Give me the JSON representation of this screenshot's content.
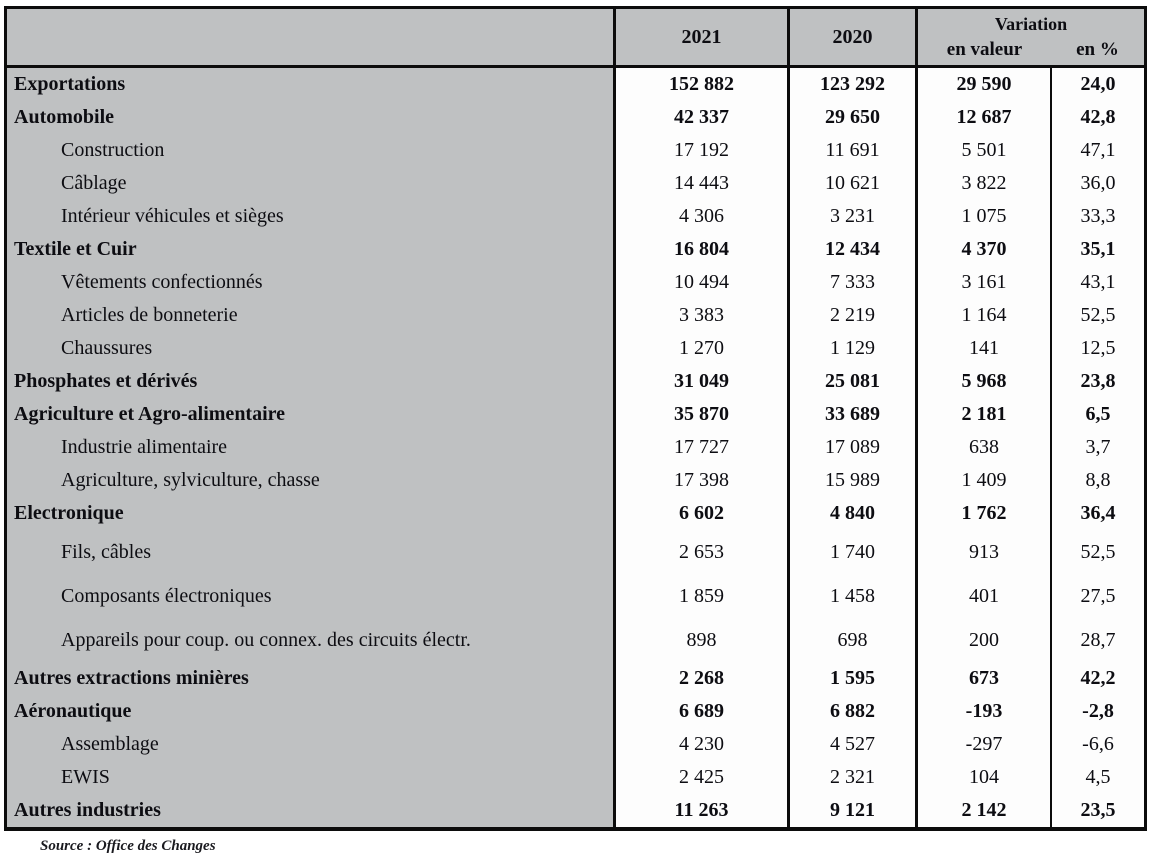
{
  "table": {
    "header": {
      "col_2021": "2021",
      "col_2020": "2020",
      "variation": "Variation",
      "en_valeur": "en valeur",
      "en_pct": "en %"
    },
    "rows": [
      {
        "label": "Exportations",
        "v2021": "152 882",
        "v2020": "123 292",
        "var_value": "29 590",
        "var_pct": "24,0",
        "bold": true,
        "indent": false,
        "tall": false
      },
      {
        "label": "Automobile",
        "v2021": "42 337",
        "v2020": "29 650",
        "var_value": "12 687",
        "var_pct": "42,8",
        "bold": true,
        "indent": false,
        "tall": false
      },
      {
        "label": "Construction",
        "v2021": "17 192",
        "v2020": "11 691",
        "var_value": "5 501",
        "var_pct": "47,1",
        "bold": false,
        "indent": true,
        "tall": false
      },
      {
        "label": "Câblage",
        "v2021": "14 443",
        "v2020": "10 621",
        "var_value": "3 822",
        "var_pct": "36,0",
        "bold": false,
        "indent": true,
        "tall": false
      },
      {
        "label": "Intérieur véhicules et sièges",
        "v2021": "4 306",
        "v2020": "3 231",
        "var_value": "1 075",
        "var_pct": "33,3",
        "bold": false,
        "indent": true,
        "tall": false
      },
      {
        "label": "Textile et Cuir",
        "v2021": "16 804",
        "v2020": "12 434",
        "var_value": "4 370",
        "var_pct": "35,1",
        "bold": true,
        "indent": false,
        "tall": false
      },
      {
        "label": "Vêtements confectionnés",
        "v2021": "10 494",
        "v2020": "7 333",
        "var_value": "3 161",
        "var_pct": "43,1",
        "bold": false,
        "indent": true,
        "tall": false
      },
      {
        "label": "Articles de bonneterie",
        "v2021": "3 383",
        "v2020": "2 219",
        "var_value": "1 164",
        "var_pct": "52,5",
        "bold": false,
        "indent": true,
        "tall": false
      },
      {
        "label": "Chaussures",
        "v2021": "1 270",
        "v2020": "1 129",
        "var_value": "141",
        "var_pct": "12,5",
        "bold": false,
        "indent": true,
        "tall": false
      },
      {
        "label": "Phosphates et dérivés",
        "v2021": "31 049",
        "v2020": "25 081",
        "var_value": "5 968",
        "var_pct": "23,8",
        "bold": true,
        "indent": false,
        "tall": false
      },
      {
        "label": "Agriculture et Agro-alimentaire",
        "v2021": "35 870",
        "v2020": "33 689",
        "var_value": "2 181",
        "var_pct": "6,5",
        "bold": true,
        "indent": false,
        "tall": false
      },
      {
        "label": "Industrie alimentaire",
        "v2021": "17 727",
        "v2020": "17 089",
        "var_value": "638",
        "var_pct": "3,7",
        "bold": false,
        "indent": true,
        "tall": false
      },
      {
        "label": "Agriculture, sylviculture, chasse",
        "v2021": "17 398",
        "v2020": "15 989",
        "var_value": "1 409",
        "var_pct": "8,8",
        "bold": false,
        "indent": true,
        "tall": false
      },
      {
        "label": "Electronique",
        "v2021": "6 602",
        "v2020": "4 840",
        "var_value": "1 762",
        "var_pct": "36,4",
        "bold": true,
        "indent": false,
        "tall": false
      },
      {
        "label": "Fils, câbles",
        "v2021": "2 653",
        "v2020": "1 740",
        "var_value": "913",
        "var_pct": "52,5",
        "bold": false,
        "indent": true,
        "tall": true
      },
      {
        "label": "Composants électroniques",
        "v2021": "1 859",
        "v2020": "1 458",
        "var_value": "401",
        "var_pct": "27,5",
        "bold": false,
        "indent": true,
        "tall": true
      },
      {
        "label": "Appareils pour coup. ou connex. des circuits électr.",
        "v2021": "898",
        "v2020": "698",
        "var_value": "200",
        "var_pct": "28,7",
        "bold": false,
        "indent": true,
        "tall": true
      },
      {
        "label": "Autres extractions minières",
        "v2021": "2 268",
        "v2020": "1 595",
        "var_value": "673",
        "var_pct": "42,2",
        "bold": true,
        "indent": false,
        "tall": false
      },
      {
        "label": "Aéronautique",
        "v2021": "6 689",
        "v2020": "6 882",
        "var_value": "-193",
        "var_pct": "-2,8",
        "bold": true,
        "indent": false,
        "tall": false
      },
      {
        "label": "Assemblage",
        "v2021": "4 230",
        "v2020": "4 527",
        "var_value": "-297",
        "var_pct": "-6,6",
        "bold": false,
        "indent": true,
        "tall": false
      },
      {
        "label": "EWIS",
        "v2021": "2 425",
        "v2020": "2 321",
        "var_value": "104",
        "var_pct": "4,5",
        "bold": false,
        "indent": true,
        "tall": false
      },
      {
        "label": "Autres industries",
        "v2021": "11 263",
        "v2020": "9 121",
        "var_value": "2 142",
        "var_pct": "23,5",
        "bold": true,
        "indent": false,
        "tall": false
      }
    ],
    "source": "Source : Office des Changes"
  },
  "colors": {
    "table_gray": "#bfc1c2",
    "cell_white": "#fdfdfd",
    "border_black": "#0c0c0c"
  }
}
